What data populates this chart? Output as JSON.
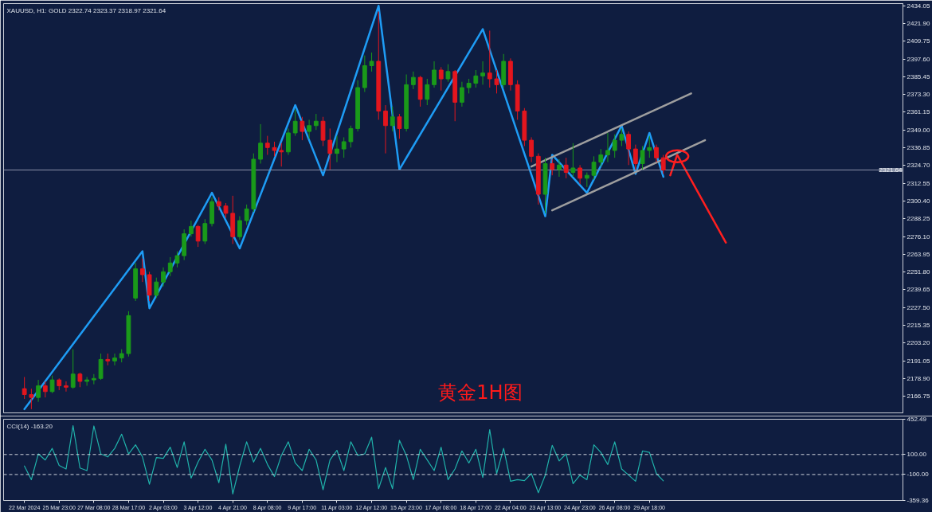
{
  "chart_data": [
    {
      "type": "candlestick",
      "title": "XAUUSD, H1: GOLD 2322.74 2323.37 2318.97 2321.64",
      "annotations": [
        "黄金1H图"
      ],
      "tick_labels": "y",
      "categories": [
        null,
        null,
        null,
        null,
        null,
        null,
        null,
        null,
        null,
        null,
        null,
        null,
        null,
        null,
        null,
        null,
        null,
        null,
        null,
        null,
        null,
        null,
        null,
        null,
        null,
        null,
        null,
        null,
        null,
        null,
        null,
        null,
        null,
        null,
        null,
        null,
        null,
        null,
        null,
        null,
        null,
        null,
        null,
        null,
        null,
        null,
        null,
        null,
        null,
        null,
        null,
        null,
        null,
        null,
        null,
        null,
        null,
        null,
        null,
        null,
        null,
        null,
        null,
        null,
        null,
        null,
        null,
        null,
        null,
        null,
        null,
        null,
        null,
        null,
        null,
        null,
        null,
        null,
        null,
        null,
        null,
        null,
        null,
        null,
        null,
        null,
        null,
        null,
        null,
        null,
        null,
        null,
        null,
        null,
        null,
        null,
        null,
        null,
        null,
        null,
        null,
        null,
        null,
        null,
        null,
        null,
        null,
        null,
        null,
        null,
        null,
        null,
        null,
        null,
        null,
        null,
        null,
        null,
        null,
        null,
        null,
        null,
        null,
        null,
        null,
        null,
        null
      ],
      "ohlc": [
        [
          2172,
          2180,
          2165,
          2168
        ],
        [
          2168,
          2172,
          2158,
          2166
        ],
        [
          2166,
          2178,
          2163,
          2174
        ],
        [
          2174,
          2177,
          2166,
          2170
        ],
        [
          2170,
          2181,
          2169,
          2178
        ],
        [
          2178,
          2179,
          2171,
          2174
        ],
        [
          2174,
          2177,
          2170,
          2173
        ],
        [
          2173,
          2199,
          2172,
          2182
        ],
        [
          2182,
          2183,
          2173,
          2177
        ],
        [
          2177,
          2180,
          2174,
          2178
        ],
        [
          2178,
          2182,
          2175,
          2179
        ],
        [
          2179,
          2196,
          2178,
          2192
        ],
        [
          2192,
          2196,
          2188,
          2191
        ],
        [
          2191,
          2196,
          2188,
          2193
        ],
        [
          2193,
          2199,
          2190,
          2196
        ],
        [
          2196,
          2225,
          2194,
          2222
        ],
        [
          2234,
          2258,
          2232,
          2254
        ],
        [
          2254,
          2261,
          2245,
          2250
        ],
        [
          2250,
          2252,
          2232,
          2236
        ],
        [
          2236,
          2248,
          2234,
          2245
        ],
        [
          2245,
          2255,
          2242,
          2252
        ],
        [
          2252,
          2262,
          2249,
          2258
        ],
        [
          2258,
          2266,
          2255,
          2263
        ],
        [
          2263,
          2281,
          2260,
          2278
        ],
        [
          2278,
          2287,
          2276,
          2283
        ],
        [
          2283,
          2284,
          2269,
          2273
        ],
        [
          2273,
          2288,
          2271,
          2285
        ],
        [
          2285,
          2303,
          2283,
          2300
        ],
        [
          2300,
          2303,
          2294,
          2297
        ],
        [
          2297,
          2299,
          2289,
          2292
        ],
        [
          2292,
          2304,
          2271,
          2276
        ],
        [
          2276,
          2290,
          2274,
          2287
        ],
        [
          2287,
          2298,
          2284,
          2295
        ],
        [
          2295,
          2333,
          2293,
          2329
        ],
        [
          2329,
          2353,
          2326,
          2340
        ],
        [
          2340,
          2345,
          2332,
          2337
        ],
        [
          2337,
          2341,
          2331,
          2335
        ],
        [
          2335,
          2340,
          2324,
          2334
        ],
        [
          2334,
          2350,
          2332,
          2347
        ],
        [
          2347,
          2363,
          2345,
          2355
        ],
        [
          2355,
          2358,
          2342,
          2348
        ],
        [
          2348,
          2356,
          2343,
          2352
        ],
        [
          2352,
          2360,
          2349,
          2355
        ],
        [
          2355,
          2358,
          2338,
          2342
        ],
        [
          2342,
          2350,
          2322,
          2333
        ],
        [
          2333,
          2345,
          2327,
          2336
        ],
        [
          2336,
          2344,
          2330,
          2341
        ],
        [
          2341,
          2352,
          2337,
          2350
        ],
        [
          2350,
          2383,
          2348,
          2378
        ],
        [
          2378,
          2400,
          2375,
          2393
        ],
        [
          2393,
          2402,
          2389,
          2396
        ],
        [
          2396,
          2430,
          2356,
          2362
        ],
        [
          2362,
          2366,
          2333,
          2352
        ],
        [
          2352,
          2365,
          2348,
          2358
        ],
        [
          2358,
          2360,
          2343,
          2350
        ],
        [
          2350,
          2387,
          2348,
          2380
        ],
        [
          2380,
          2389,
          2377,
          2385
        ],
        [
          2385,
          2386,
          2365,
          2370
        ],
        [
          2370,
          2384,
          2366,
          2380
        ],
        [
          2380,
          2396,
          2378,
          2390
        ],
        [
          2390,
          2392,
          2376,
          2384
        ],
        [
          2384,
          2394,
          2382,
          2389
        ],
        [
          2389,
          2390,
          2355,
          2368
        ],
        [
          2368,
          2382,
          2365,
          2378
        ],
        [
          2378,
          2384,
          2374,
          2381
        ],
        [
          2381,
          2390,
          2378,
          2386
        ],
        [
          2386,
          2396,
          2380,
          2388
        ],
        [
          2388,
          2417,
          2378,
          2384
        ],
        [
          2384,
          2390,
          2374,
          2380
        ],
        [
          2380,
          2401,
          2378,
          2396
        ],
        [
          2396,
          2398,
          2376,
          2380
        ],
        [
          2380,
          2383,
          2356,
          2362
        ],
        [
          2362,
          2364,
          2338,
          2342
        ],
        [
          2342,
          2344,
          2327,
          2331
        ],
        [
          2331,
          2333,
          2298,
          2305
        ],
        [
          2305,
          2330,
          2292,
          2326
        ],
        [
          2326,
          2329,
          2318,
          2322
        ],
        [
          2322,
          2329,
          2317,
          2325
        ],
        [
          2325,
          2330,
          2316,
          2320
        ],
        [
          2320,
          2340,
          2317,
          2323
        ],
        [
          2323,
          2325,
          2312,
          2316
        ],
        [
          2316,
          2320,
          2310,
          2318
        ],
        [
          2318,
          2331,
          2315,
          2327
        ],
        [
          2327,
          2336,
          2324,
          2332
        ],
        [
          2332,
          2347,
          2327,
          2335
        ],
        [
          2335,
          2346,
          2330,
          2342
        ],
        [
          2342,
          2350,
          2338,
          2346
        ],
        [
          2346,
          2348,
          2325,
          2336
        ],
        [
          2336,
          2339,
          2322,
          2326
        ],
        [
          2326,
          2338,
          2322,
          2335
        ],
        [
          2335,
          2345,
          2330,
          2337
        ],
        [
          2337,
          2339,
          2327,
          2330
        ],
        [
          2330,
          2332,
          2319,
          2321.64
        ],
        null,
        null,
        null,
        null,
        null,
        null,
        null,
        null,
        null,
        null,
        null,
        null,
        null,
        null,
        null,
        null,
        null,
        null,
        null,
        null,
        null,
        null,
        null,
        null,
        null,
        null,
        null,
        null,
        null,
        null,
        null,
        null,
        null,
        null
      ],
      "colors": [
        "#e3161e",
        "#e3161e",
        "#1a9a1a",
        "#e3161e",
        "#1a9a1a",
        "#e3161e",
        "#e3161e",
        "#1a9a1a",
        "#e3161e",
        "#1a9a1a",
        "#1a9a1a",
        "#1a9a1a",
        "#e3161e",
        "#1a9a1a",
        "#1a9a1a",
        "#1a9a1a",
        "#1a9a1a",
        "#e3161e",
        "#e3161e",
        "#1a9a1a",
        "#1a9a1a",
        "#1a9a1a",
        "#1a9a1a",
        "#1a9a1a",
        "#1a9a1a",
        "#e3161e",
        "#1a9a1a",
        "#1a9a1a",
        "#e3161e",
        "#e3161e",
        "#e3161e",
        "#1a9a1a",
        "#1a9a1a",
        "#1a9a1a",
        "#1a9a1a",
        "#e3161e",
        "#e3161e",
        "#e3161e",
        "#1a9a1a",
        "#1a9a1a",
        "#e3161e",
        "#1a9a1a",
        "#1a9a1a",
        "#e3161e",
        "#e3161e",
        "#1a9a1a",
        "#1a9a1a",
        "#1a9a1a",
        "#1a9a1a",
        "#1a9a1a",
        "#1a9a1a",
        "#e3161e",
        "#e3161e",
        "#1a9a1a",
        "#e3161e",
        "#1a9a1a",
        "#1a9a1a",
        "#e3161e",
        "#1a9a1a",
        "#1a9a1a",
        "#e3161e",
        "#1a9a1a",
        "#e3161e",
        "#1a9a1a",
        "#1a9a1a",
        "#1a9a1a",
        "#1a9a1a",
        "#e3161e",
        "#e3161e",
        "#1a9a1a",
        "#e3161e",
        "#e3161e",
        "#e3161e",
        "#e3161e",
        "#e3161e",
        "#1a9a1a",
        "#e3161e",
        "#1a9a1a",
        "#e3161e",
        "#1a9a1a",
        "#e3161e",
        "#1a9a1a",
        "#1a9a1a",
        "#1a9a1a",
        "#1a9a1a",
        "#1a9a1a",
        "#1a9a1a",
        "#e3161e",
        "#e3161e",
        "#1a9a1a",
        "#1a9a1a",
        "#e3161e",
        "#e3161e",
        null,
        null,
        null,
        null,
        null,
        null,
        null,
        null,
        null,
        null,
        null,
        null,
        null,
        null,
        null,
        null,
        null,
        null,
        null,
        null,
        null,
        null,
        null,
        null,
        null,
        null,
        null,
        null,
        null,
        null,
        null,
        null,
        null,
        null
      ],
      "series": [
        {
          "type": "line",
          "color": "#1e9cf5",
          "values": [
            2158,
            null,
            null,
            null,
            null,
            null,
            null,
            null,
            null,
            null,
            null,
            null,
            null,
            null,
            null,
            null,
            null,
            2266,
            2227,
            null,
            null,
            null,
            null,
            null,
            null,
            null,
            null,
            2306,
            null,
            null,
            null,
            2268,
            null,
            null,
            null,
            null,
            null,
            null,
            null,
            2366,
            null,
            null,
            null,
            2318,
            null,
            null,
            null,
            null,
            null,
            null,
            null,
            2434,
            null,
            null,
            2322,
            null,
            null,
            null,
            null,
            null,
            null,
            null,
            null,
            null,
            null,
            null,
            2418,
            null,
            null,
            null,
            null,
            null,
            null,
            null,
            null,
            2290,
            2332,
            null,
            null,
            null,
            null,
            2306,
            null,
            null,
            null,
            null,
            2352,
            null,
            2319,
            null,
            2347,
            null,
            2317,
            null,
            null,
            null,
            null,
            null,
            null,
            null,
            null,
            null,
            null,
            null,
            null,
            null,
            null,
            null,
            null,
            null,
            null,
            null,
            null,
            null,
            null,
            null,
            null,
            null,
            null,
            null,
            null,
            null,
            null,
            null,
            null,
            null,
            null
          ]
        },
        {
          "type": "line",
          "color": "#9e9e9e",
          "values": [
            null,
            null,
            null,
            null,
            null,
            null,
            null,
            null,
            null,
            null,
            null,
            null,
            null,
            null,
            null,
            null,
            null,
            null,
            null,
            null,
            null,
            null,
            null,
            null,
            null,
            null,
            null,
            null,
            null,
            null,
            null,
            null,
            null,
            null,
            null,
            null,
            null,
            null,
            null,
            null,
            null,
            null,
            null,
            null,
            null,
            null,
            null,
            null,
            null,
            null,
            null,
            null,
            null,
            null,
            null,
            null,
            null,
            null,
            null,
            null,
            null,
            null,
            null,
            null,
            null,
            null,
            null,
            null,
            null,
            null,
            null,
            null,
            null,
            2324,
            null,
            null,
            null,
            null,
            null,
            null,
            null,
            null,
            null,
            null,
            null,
            null,
            null,
            null,
            null,
            null,
            null,
            null,
            null,
            null,
            null,
            null,
            2374,
            null,
            null,
            null,
            null,
            null,
            null,
            null,
            null,
            null,
            null,
            null,
            null,
            null,
            null,
            null,
            null,
            null,
            null,
            null,
            null,
            null,
            null,
            null,
            null,
            null,
            null,
            null,
            null,
            null,
            null
          ]
        },
        {
          "type": "line",
          "color": "#9e9e9e",
          "values": [
            null,
            null,
            null,
            null,
            null,
            null,
            null,
            null,
            null,
            null,
            null,
            null,
            null,
            null,
            null,
            null,
            null,
            null,
            null,
            null,
            null,
            null,
            null,
            null,
            null,
            null,
            null,
            null,
            null,
            null,
            null,
            null,
            null,
            null,
            null,
            null,
            null,
            null,
            null,
            null,
            null,
            null,
            null,
            null,
            null,
            null,
            null,
            null,
            null,
            null,
            null,
            null,
            null,
            null,
            null,
            null,
            null,
            null,
            null,
            null,
            null,
            null,
            null,
            null,
            null,
            null,
            null,
            null,
            null,
            null,
            null,
            null,
            null,
            null,
            null,
            null,
            2294,
            null,
            null,
            null,
            null,
            null,
            null,
            null,
            null,
            null,
            null,
            null,
            null,
            null,
            null,
            null,
            null,
            null,
            null,
            null,
            null,
            null,
            2342,
            null,
            null,
            null,
            null,
            null,
            null,
            null,
            null,
            null,
            null,
            null,
            null,
            null,
            null,
            null,
            null,
            null,
            null,
            null,
            null,
            null,
            null,
            null,
            null,
            null,
            null,
            null,
            null
          ]
        },
        {
          "type": "line",
          "color": "#ff1f1f",
          "values": [
            null,
            null,
            null,
            null,
            null,
            null,
            null,
            null,
            null,
            null,
            null,
            null,
            null,
            null,
            null,
            null,
            null,
            null,
            null,
            null,
            null,
            null,
            null,
            null,
            null,
            null,
            null,
            null,
            null,
            null,
            null,
            null,
            null,
            null,
            null,
            null,
            null,
            null,
            null,
            null,
            null,
            null,
            null,
            null,
            null,
            null,
            null,
            null,
            null,
            null,
            null,
            null,
            null,
            null,
            null,
            null,
            null,
            null,
            null,
            null,
            null,
            null,
            null,
            null,
            null,
            null,
            null,
            null,
            null,
            null,
            null,
            null,
            null,
            null,
            null,
            null,
            null,
            null,
            null,
            null,
            null,
            null,
            null,
            null,
            null,
            null,
            null,
            null,
            null,
            null,
            null,
            null,
            null,
            2318,
            2332,
            null,
            null,
            null,
            null,
            null,
            null,
            2272,
            null,
            null,
            null,
            null,
            null,
            null,
            null,
            null,
            null,
            null,
            null,
            null,
            null,
            null,
            null,
            null,
            null,
            null,
            null,
            null,
            null,
            null,
            null,
            null,
            null
          ]
        },
        {
          "type": "scatter",
          "marker": "circle",
          "color": "#ff1f1f",
          "values": [
            null,
            null,
            null,
            null,
            null,
            null,
            null,
            null,
            null,
            null,
            null,
            null,
            null,
            null,
            null,
            null,
            null,
            null,
            null,
            null,
            null,
            null,
            null,
            null,
            null,
            null,
            null,
            null,
            null,
            null,
            null,
            null,
            null,
            null,
            null,
            null,
            null,
            null,
            null,
            null,
            null,
            null,
            null,
            null,
            null,
            null,
            null,
            null,
            null,
            null,
            null,
            null,
            null,
            null,
            null,
            null,
            null,
            null,
            null,
            null,
            null,
            null,
            null,
            null,
            null,
            null,
            null,
            null,
            null,
            null,
            null,
            null,
            null,
            null,
            null,
            null,
            null,
            null,
            null,
            null,
            null,
            null,
            null,
            null,
            null,
            null,
            null,
            null,
            null,
            null,
            null,
            null,
            null,
            null,
            2331,
            null,
            null,
            null,
            null,
            null,
            null,
            null,
            null,
            null,
            null,
            null,
            null,
            null,
            null,
            null,
            null,
            null,
            null,
            null,
            null,
            null,
            null,
            null,
            null,
            null,
            null,
            null,
            null,
            null,
            null,
            null,
            null
          ]
        }
      ],
      "ylim": [
        2155.45,
        2435.5
      ],
      "yticks": [
        2434.05,
        {
          "value": 2421.9,
          "label": "2421.90"
        },
        2409.75,
        {
          "value": 2397.6,
          "label": "2397.60"
        },
        2385.45,
        {
          "value": 2373.3,
          "label": "2373.30"
        },
        2361.15,
        {
          "value": 2349,
          "label": "2349.00"
        },
        2336.85,
        {
          "value": 2324.7,
          "label": "2324.70"
        },
        2312.55,
        {
          "value": 2300.4,
          "label": "2300.40"
        },
        2288.25,
        {
          "value": 2276.1,
          "label": "2276.10"
        },
        2263.95,
        {
          "value": 2251.8,
          "label": "2251.80"
        },
        2239.65,
        {
          "value": 2227.5,
          "label": "2227.50"
        },
        2215.35,
        {
          "value": 2203.2,
          "label": "2203.20"
        },
        2191.05,
        {
          "value": 2178.9,
          "label": "2178.90"
        },
        2166.75
      ],
      "ref_lines": [
        {
          "axis": "y",
          "value": 2321.64,
          "label": "2321.64",
          "color": "#8a93a8"
        }
      ]
    },
    {
      "type": "line",
      "title": "CCI(14) -163.20",
      "categories": [
        "22 Mar 2024",
        null,
        null,
        null,
        null,
        "25 Mar 23:00",
        null,
        null,
        null,
        null,
        "27 Mar 08:00",
        null,
        null,
        null,
        null,
        "28 Mar 17:00",
        null,
        null,
        null,
        null,
        "2 Apr 03:00",
        null,
        null,
        null,
        null,
        "3 Apr 12:00",
        null,
        null,
        null,
        null,
        "4 Apr 21:00",
        null,
        null,
        null,
        null,
        "8 Apr 08:00",
        null,
        null,
        null,
        null,
        "9 Apr 17:00",
        null,
        null,
        null,
        null,
        "11 Apr 03:00",
        null,
        null,
        null,
        null,
        "12 Apr 12:00",
        null,
        null,
        null,
        null,
        "15 Apr 23:00",
        null,
        null,
        null,
        null,
        "17 Apr 08:00",
        null,
        null,
        null,
        null,
        "18 Apr 17:00",
        null,
        null,
        null,
        null,
        "22 Apr 04:00",
        null,
        null,
        null,
        null,
        "23 Apr 13:00",
        null,
        null,
        null,
        null,
        "24 Apr 23:00",
        null,
        null,
        null,
        null,
        "26 Apr 08:00",
        null,
        null,
        null,
        null,
        "29 Apr 18:00",
        null,
        null,
        null,
        null,
        null,
        null,
        null,
        null,
        null,
        null,
        null,
        null,
        null,
        null,
        null,
        null,
        null,
        null,
        null,
        null,
        null,
        null,
        null,
        null,
        null,
        null,
        null,
        null,
        null,
        null,
        null,
        null,
        null,
        null,
        null,
        null
      ],
      "series": [
        {
          "color": "#20b2aa",
          "values": [
            -15,
            -152,
            106,
            45,
            161,
            -9,
            -45,
            388,
            -35,
            -61,
            385,
            106,
            76,
            161,
            303,
            106,
            197,
            76,
            -197,
            70,
            61,
            173,
            -30,
            227,
            -136,
            24,
            152,
            45,
            -182,
            203,
            -294,
            -15,
            227,
            24,
            161,
            0,
            -121,
            91,
            227,
            15,
            -61,
            152,
            45,
            -252,
            45,
            142,
            -61,
            227,
            91,
            106,
            273,
            -242,
            -30,
            -242,
            242,
            90,
            -152,
            152,
            45,
            -61,
            173,
            -152,
            -45,
            136,
            15,
            152,
            -130,
            348,
            -91,
            161,
            -167,
            -152,
            -161,
            -91,
            -282,
            -106,
            191,
            36,
            106,
            -191,
            -106,
            -152,
            197,
            121,
            0,
            227,
            -45,
            -106,
            -167,
            136,
            121,
            -91,
            -163,
            null,
            null,
            null,
            null,
            null,
            null,
            null,
            null,
            null,
            null,
            null,
            null,
            null,
            null,
            null,
            null,
            null,
            null,
            null,
            null,
            null,
            null,
            null,
            null,
            null,
            null,
            null,
            null,
            null,
            null,
            null,
            null,
            null,
            null
          ]
        }
      ],
      "ylim": [
        -359.36,
        452.49
      ],
      "yticks": [
        452.49,
        {
          "value": 100,
          "label": "100.00"
        },
        {
          "value": -100,
          "label": "-100.00"
        },
        -359.36
      ],
      "ref_lines": [
        {
          "axis": "y",
          "value": 100,
          "color": "#d0d4dc",
          "line_style": "dashed"
        },
        {
          "axis": "y",
          "value": -100,
          "color": "#d0d4dc",
          "line_style": "dashed"
        }
      ]
    }
  ]
}
